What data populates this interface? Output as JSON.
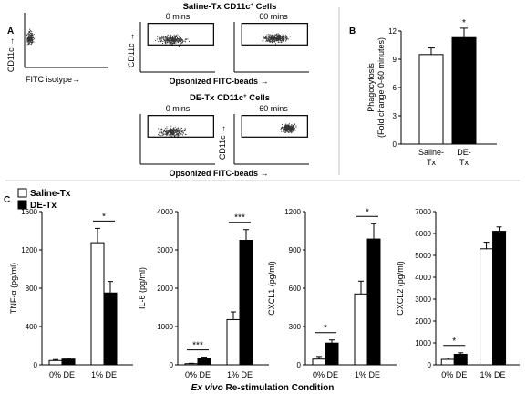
{
  "panels": {
    "a_label": "A",
    "b_label": "B",
    "c_label": "C"
  },
  "flow": {
    "saline_title": "Saline-Tx CD11c",
    "de_title": "DE-Tx CD11c",
    "title_suffix": "Cells",
    "superscript": "+",
    "time_0": "0 mins",
    "time_60": "60 mins",
    "ylabel": "CD11c →",
    "xlabel": "Opsonized FITC-beads →",
    "isotype_xlabel": "FITC isotype→"
  },
  "legend": {
    "saline": "Saline-Tx",
    "de": "DE-Tx"
  },
  "xaxis_title_italic": "Ex vivo",
  "xaxis_title_rest": " Re-stimulation Condition",
  "chart_data": [
    {
      "id": "B",
      "type": "bar",
      "ylabel_line1": "Phagocytosis",
      "ylabel_line2": "(Fold change 0-60 minutes)",
      "categories": [
        "Saline-Tx",
        "DE-Tx"
      ],
      "category_lines": [
        [
          "Saline-",
          "Tx"
        ],
        [
          "DE-",
          "Tx"
        ]
      ],
      "values": [
        9.5,
        11.3
      ],
      "errors": [
        0.7,
        1.0
      ],
      "colors": [
        "#ffffff",
        "#000000"
      ],
      "ylim": [
        0,
        12
      ],
      "yticks": [
        "0",
        "3",
        "6",
        "9",
        "12"
      ],
      "significance": [
        {
          "label": "*",
          "over": 1
        }
      ]
    },
    {
      "id": "C1",
      "type": "bar",
      "ylabel": "TNF-α (pg/ml)",
      "categories": [
        "0% DE",
        "1% DE"
      ],
      "series": [
        {
          "name": "Saline-Tx",
          "values": [
            45,
            1275
          ],
          "errors": [
            10,
            150
          ]
        },
        {
          "name": "DE-Tx",
          "values": [
            60,
            750
          ],
          "errors": [
            10,
            120
          ]
        }
      ],
      "ylim": [
        0,
        1600
      ],
      "yticks": [
        "0",
        "400",
        "800",
        "1200",
        "1600"
      ],
      "significance": [
        {
          "label": "*",
          "group": 1
        }
      ]
    },
    {
      "id": "C2",
      "type": "bar",
      "ylabel": "IL-6 (pg/ml)",
      "categories": [
        "0% DE",
        "1% DE"
      ],
      "series": [
        {
          "name": "Saline-Tx",
          "values": [
            30,
            1180
          ],
          "errors": [
            10,
            200
          ]
        },
        {
          "name": "DE-Tx",
          "values": [
            170,
            3250
          ],
          "errors": [
            30,
            280
          ]
        }
      ],
      "ylim": [
        0,
        4000
      ],
      "yticks": [
        "0",
        "1000",
        "2000",
        "3000",
        "4000"
      ],
      "significance": [
        {
          "label": "***",
          "group": 0
        },
        {
          "label": "***",
          "group": 1
        }
      ]
    },
    {
      "id": "C3",
      "type": "bar",
      "ylabel": "CXCL1 (pg/ml)",
      "categories": [
        "0% DE",
        "1% DE"
      ],
      "series": [
        {
          "name": "Saline-Tx",
          "values": [
            45,
            555
          ],
          "errors": [
            20,
            100
          ]
        },
        {
          "name": "DE-Tx",
          "values": [
            170,
            985
          ],
          "errors": [
            25,
            120
          ]
        }
      ],
      "ylim": [
        0,
        1200
      ],
      "yticks": [
        "0",
        "300",
        "600",
        "900",
        "1200"
      ],
      "significance": [
        {
          "label": "*",
          "group": 0
        },
        {
          "label": "*",
          "group": 1
        }
      ]
    },
    {
      "id": "C4",
      "type": "bar",
      "ylabel": "CXCL2 (pg/ml)",
      "categories": [
        "0% DE",
        "1% DE"
      ],
      "series": [
        {
          "name": "Saline-Tx",
          "values": [
            250,
            5300
          ],
          "errors": [
            60,
            300
          ]
        },
        {
          "name": "DE-Tx",
          "values": [
            480,
            6100
          ],
          "errors": [
            70,
            200
          ]
        }
      ],
      "ylim": [
        0,
        7000
      ],
      "yticks": [
        "0",
        "1000",
        "2000",
        "3000",
        "4000",
        "5000",
        "6000",
        "7000"
      ],
      "significance": [
        {
          "label": "*",
          "group": 0
        }
      ]
    }
  ]
}
